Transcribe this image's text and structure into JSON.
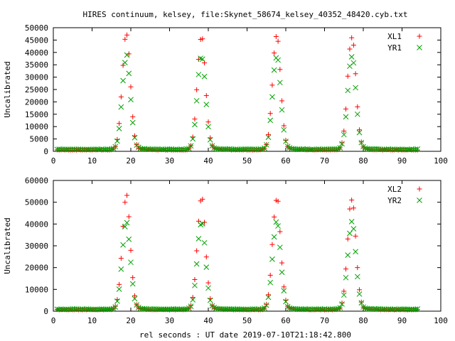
{
  "title": "HIRES continuum, kelsey, file:Skynet_58674_kelsey_40352_48420.cyb.txt",
  "xlabel": "rel seconds : UT date 2019-07-10T21:18:42.800",
  "colors": {
    "red": "#ff0000",
    "green": "#00a000"
  },
  "chart_data": [
    {
      "type": "scatter",
      "ylabel": "Uncalibrated",
      "xlim": [
        0,
        100
      ],
      "ylim": [
        0,
        50000
      ],
      "xticks": [
        0,
        10,
        20,
        30,
        40,
        50,
        60,
        70,
        80,
        90,
        100
      ],
      "yticks": [
        0,
        5000,
        10000,
        15000,
        20000,
        25000,
        30000,
        35000,
        40000,
        45000,
        50000
      ],
      "legend_position": "top-right",
      "series": [
        {
          "name": "XL1",
          "marker": "plus",
          "color": "#ff0000",
          "peak": 46800,
          "base": 600,
          "peak_centers": [
            18.8,
            38.2,
            57.6,
            77.0
          ]
        },
        {
          "name": "YR1",
          "marker": "cross",
          "color": "#00a000",
          "peak": 38000,
          "base": 800,
          "peak_centers": [
            18.8,
            38.2,
            57.6,
            77.0
          ]
        }
      ],
      "x_range_samples": [
        1,
        94,
        0.5
      ]
    },
    {
      "type": "scatter",
      "ylabel": "Uncalibrated",
      "xlim": [
        0,
        100
      ],
      "ylim": [
        0,
        60000
      ],
      "xticks": [
        0,
        10,
        20,
        30,
        40,
        50,
        60,
        70,
        80,
        90,
        100
      ],
      "yticks": [
        0,
        10000,
        20000,
        30000,
        40000,
        50000,
        60000
      ],
      "legend_position": "top-right",
      "series": [
        {
          "name": "XL2",
          "marker": "plus",
          "color": "#ff0000",
          "peak": 51800,
          "base": 700,
          "peak_centers": [
            18.8,
            38.2,
            57.6,
            77.0
          ]
        },
        {
          "name": "YR2",
          "marker": "cross",
          "color": "#00a000",
          "peak": 40500,
          "base": 900,
          "peak_centers": [
            18.8,
            38.2,
            57.6,
            77.0
          ]
        }
      ],
      "x_range_samples": [
        1,
        94,
        0.5
      ]
    }
  ]
}
